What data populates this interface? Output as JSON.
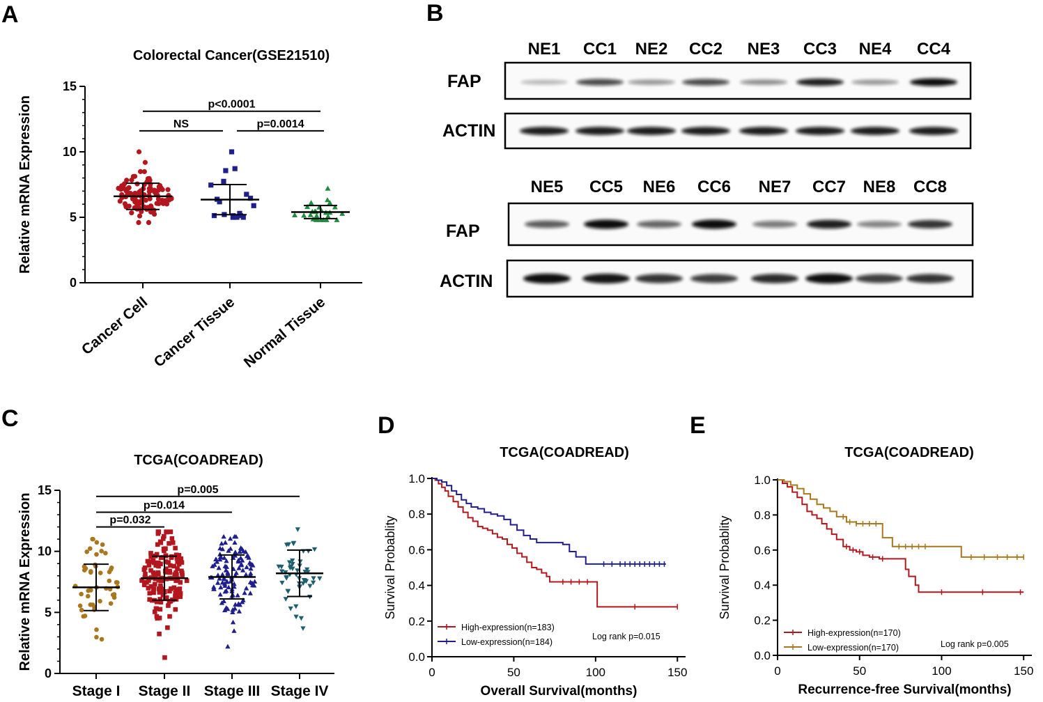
{
  "panel_labels": {
    "A": "A",
    "B": "B",
    "C": "C",
    "D": "D",
    "E": "E"
  },
  "colors": {
    "red": "#b3171d",
    "navy": "#1e1e8c",
    "green": "#1e8a3c",
    "gold": "#a8771e",
    "teal": "#1e5e6e",
    "brown": "#a8771e"
  },
  "blot": {
    "top_lanes": [
      "NE1",
      "CC1",
      "NE2",
      "CC2",
      "NE3",
      "CC3",
      "NE4",
      "CC4"
    ],
    "bottom_lanes": [
      "NE5",
      "CC5",
      "NE6",
      "CC6",
      "NE7",
      "CC7",
      "NE8",
      "CC8"
    ],
    "row_fap": "FAP",
    "row_actin": "ACTIN",
    "fap_top_intensity": [
      0.15,
      0.7,
      0.3,
      0.7,
      0.35,
      0.9,
      0.3,
      1.0
    ],
    "fap_bottom_intensity": [
      0.6,
      1.0,
      0.55,
      1.0,
      0.45,
      0.9,
      0.4,
      0.8
    ]
  },
  "chart_data": [
    {
      "id": "A",
      "type": "scatter",
      "title": "Colorectal Cancer(GSE21510)",
      "ylabel": "Relative mRNA Expression",
      "ylim": [
        0,
        15
      ],
      "yticks": [
        0,
        5,
        10,
        15
      ],
      "categories": [
        "Cancer Cell",
        "Cancer Tissue",
        "Normal Tissue"
      ],
      "series": [
        {
          "name": "Cancer Cell",
          "n": 110,
          "mean": 6.6,
          "sd": 1.0,
          "min": 4.6,
          "max": 10.0,
          "marker": "circle",
          "color_key": "red"
        },
        {
          "name": "Cancer Tissue",
          "n": 19,
          "mean": 6.35,
          "sd": 1.15,
          "min": 5.0,
          "max": 10.0,
          "marker": "square",
          "color_key": "navy"
        },
        {
          "name": "Normal Tissue",
          "n": 26,
          "mean": 5.4,
          "sd": 0.5,
          "min": 4.8,
          "max": 7.2,
          "marker": "triangle-up",
          "color_key": "green"
        }
      ],
      "comparisons": [
        {
          "from": 0,
          "to": 2,
          "label": "p<0.0001",
          "y": 13.1
        },
        {
          "from": 0,
          "to": 1,
          "label": "NS",
          "y": 11.6
        },
        {
          "from": 1,
          "to": 2,
          "label": "p=0.0014",
          "y": 11.6
        }
      ]
    },
    {
      "id": "C",
      "type": "scatter",
      "title": "TCGA(COADREAD)",
      "ylabel": "Relative mRNA Expression",
      "ylim": [
        0,
        15
      ],
      "yticks": [
        0,
        5,
        10,
        15
      ],
      "categories": [
        "Stage I",
        "Stage II",
        "Stage III",
        "Stage IV"
      ],
      "series": [
        {
          "name": "Stage I",
          "n": 48,
          "mean": 7.05,
          "sd": 1.9,
          "min": 2.8,
          "max": 11.0,
          "marker": "circle",
          "color_key": "gold"
        },
        {
          "name": "Stage II",
          "n": 150,
          "mean": 7.8,
          "sd": 1.8,
          "min": 1.3,
          "max": 11.6,
          "marker": "square",
          "color_key": "red"
        },
        {
          "name": "Stage III",
          "n": 120,
          "mean": 7.9,
          "sd": 1.8,
          "min": 2.2,
          "max": 11.2,
          "marker": "triangle-up",
          "color_key": "navy"
        },
        {
          "name": "Stage IV",
          "n": 50,
          "mean": 8.2,
          "sd": 1.9,
          "min": 3.7,
          "max": 11.8,
          "marker": "triangle-down",
          "color_key": "teal"
        }
      ],
      "comparisons": [
        {
          "from": 0,
          "to": 3,
          "label": "p=0.005",
          "y": 14.5
        },
        {
          "from": 0,
          "to": 2,
          "label": "p=0.014",
          "y": 13.2
        },
        {
          "from": 0,
          "to": 1,
          "label": "p=0.032",
          "y": 12.0
        }
      ]
    },
    {
      "id": "D",
      "type": "line",
      "title": "TCGA(COADREAD)",
      "xlabel": "Overall Survival(months)",
      "ylabel": "Survival Probablity",
      "xlim": [
        0,
        155
      ],
      "ylim": [
        0,
        1.0
      ],
      "xticks": [
        0,
        50,
        100,
        150
      ],
      "yticks": [
        0.0,
        0.2,
        0.4,
        0.6,
        0.8,
        1.0
      ],
      "annotation": "Log rank p=0.015",
      "series": [
        {
          "name": "High-expression(n=183)",
          "color_key": "red",
          "x": [
            0,
            2,
            4,
            6,
            8,
            10,
            13,
            16,
            19,
            22,
            25,
            28,
            31,
            34,
            37,
            40,
            43,
            46,
            49,
            52,
            55,
            58,
            61,
            64,
            67,
            70,
            72,
            100,
            101,
            150
          ],
          "y": [
            1.0,
            0.99,
            0.97,
            0.95,
            0.93,
            0.9,
            0.87,
            0.84,
            0.81,
            0.78,
            0.76,
            0.73,
            0.72,
            0.71,
            0.69,
            0.67,
            0.66,
            0.63,
            0.61,
            0.58,
            0.56,
            0.53,
            0.5,
            0.49,
            0.47,
            0.45,
            0.42,
            0.42,
            0.28,
            0.28
          ],
          "censor_x": [
            80,
            85,
            90,
            95,
            124,
            150
          ]
        },
        {
          "name": "Low-expression(n=184)",
          "color_key": "navy",
          "x": [
            0,
            3,
            6,
            9,
            12,
            15,
            18,
            21,
            24,
            28,
            32,
            36,
            40,
            44,
            48,
            52,
            56,
            60,
            64,
            70,
            75,
            80,
            84,
            88,
            94,
            100,
            143
          ],
          "y": [
            1.0,
            0.99,
            0.98,
            0.96,
            0.93,
            0.91,
            0.88,
            0.86,
            0.84,
            0.83,
            0.81,
            0.8,
            0.79,
            0.77,
            0.74,
            0.71,
            0.68,
            0.66,
            0.64,
            0.64,
            0.64,
            0.63,
            0.59,
            0.56,
            0.52,
            0.52,
            0.52
          ],
          "censor_x": [
            105,
            110,
            115,
            118,
            121,
            124,
            127,
            130,
            133,
            136,
            139,
            142
          ]
        }
      ]
    },
    {
      "id": "E",
      "type": "line",
      "title": "TCGA(COADREAD)",
      "xlabel": "Recurrence-free Survival(months)",
      "ylabel": "Survival Probablity",
      "xlim": [
        0,
        155
      ],
      "ylim": [
        0,
        1.0
      ],
      "xticks": [
        0,
        50,
        100,
        150
      ],
      "yticks": [
        0.0,
        0.2,
        0.4,
        0.6,
        0.8,
        1.0
      ],
      "annotation": "Log rank p=0.005",
      "series": [
        {
          "name": "High-expression(n=170)",
          "color_key": "red",
          "x": [
            0,
            3,
            6,
            9,
            12,
            15,
            18,
            21,
            24,
            27,
            30,
            33,
            36,
            40,
            44,
            48,
            52,
            56,
            62,
            68,
            74,
            78,
            80,
            84,
            86,
            100,
            150
          ],
          "y": [
            1.0,
            0.98,
            0.96,
            0.93,
            0.9,
            0.86,
            0.82,
            0.8,
            0.78,
            0.75,
            0.72,
            0.69,
            0.66,
            0.62,
            0.6,
            0.59,
            0.57,
            0.56,
            0.55,
            0.55,
            0.55,
            0.49,
            0.45,
            0.4,
            0.36,
            0.36,
            0.36
          ],
          "censor_x": [
            42,
            46,
            50,
            58,
            64,
            100,
            125,
            148
          ]
        },
        {
          "name": "Low-expression(n=170)",
          "color_key": "brown",
          "x": [
            0,
            4,
            8,
            12,
            16,
            20,
            24,
            28,
            32,
            36,
            42,
            48,
            54,
            60,
            64,
            70,
            80,
            90,
            100,
            108,
            112,
            150
          ],
          "y": [
            1.0,
            0.99,
            0.97,
            0.95,
            0.92,
            0.89,
            0.86,
            0.84,
            0.82,
            0.79,
            0.76,
            0.75,
            0.75,
            0.75,
            0.67,
            0.62,
            0.62,
            0.62,
            0.62,
            0.62,
            0.56,
            0.56
          ],
          "censor_x": [
            40,
            44,
            48,
            52,
            56,
            60,
            74,
            78,
            82,
            86,
            90,
            118,
            126,
            134,
            140,
            146,
            150
          ]
        }
      ]
    }
  ]
}
